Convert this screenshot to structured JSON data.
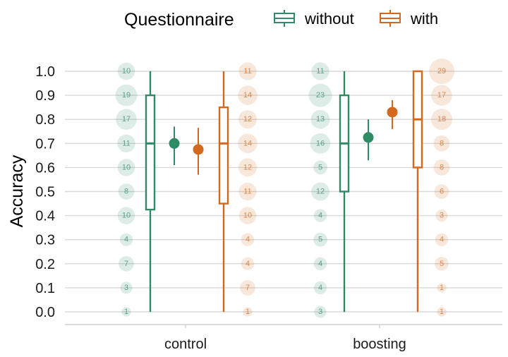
{
  "chart_data": {
    "type": "box+point+count",
    "ylabel": "Accuracy",
    "ylim": [
      0,
      1
    ],
    "y_ticks": [
      "0.0",
      "0.1",
      "0.2",
      "0.3",
      "0.4",
      "0.5",
      "0.6",
      "0.7",
      "0.8",
      "0.9",
      "1.0"
    ],
    "grid": true,
    "categories": [
      "control",
      "boosting"
    ],
    "legend": {
      "title": "Questionnaire",
      "position": "top",
      "entries": [
        {
          "key": "without",
          "label": "without",
          "color": "#2E8B66"
        },
        {
          "key": "with",
          "label": "with",
          "color": "#D2691E"
        }
      ]
    },
    "series": [
      {
        "name": "without",
        "color": "#2E8B66",
        "groups": [
          {
            "category": "control",
            "box": {
              "min": 0.0,
              "q1": 0.425,
              "median": 0.7,
              "q3": 0.9,
              "max": 1.0
            },
            "mean": 0.7,
            "ci": [
              0.61,
              0.77
            ],
            "counts": [
              {
                "y": 1.0,
                "n": "10"
              },
              {
                "y": 0.9,
                "n": "19"
              },
              {
                "y": 0.8,
                "n": "17"
              },
              {
                "y": 0.7,
                "n": "11"
              },
              {
                "y": 0.6,
                "n": "10"
              },
              {
                "y": 0.5,
                "n": "8"
              },
              {
                "y": 0.4,
                "n": "10"
              },
              {
                "y": 0.3,
                "n": "4"
              },
              {
                "y": 0.2,
                "n": "7"
              },
              {
                "y": 0.1,
                "n": "3"
              },
              {
                "y": 0.0,
                "n": "1"
              }
            ]
          },
          {
            "category": "boosting",
            "box": {
              "min": 0.0,
              "q1": 0.5,
              "median": 0.7,
              "q3": 0.9,
              "max": 1.0
            },
            "mean": 0.725,
            "ci": [
              0.63,
              0.8
            ],
            "counts": [
              {
                "y": 1.0,
                "n": "11"
              },
              {
                "y": 0.9,
                "n": "23"
              },
              {
                "y": 0.8,
                "n": "13"
              },
              {
                "y": 0.7,
                "n": "16"
              },
              {
                "y": 0.6,
                "n": "5"
              },
              {
                "y": 0.5,
                "n": "12"
              },
              {
                "y": 0.4,
                "n": "4"
              },
              {
                "y": 0.3,
                "n": "5"
              },
              {
                "y": 0.2,
                "n": "4"
              },
              {
                "y": 0.1,
                "n": "4"
              },
              {
                "y": 0.0,
                "n": "3"
              }
            ]
          }
        ]
      },
      {
        "name": "with",
        "color": "#D2691E",
        "groups": [
          {
            "category": "control",
            "box": {
              "min": 0.0,
              "q1": 0.45,
              "median": 0.7,
              "q3": 0.85,
              "max": 1.0
            },
            "mean": 0.675,
            "ci": [
              0.57,
              0.765
            ],
            "counts": [
              {
                "y": 1.0,
                "n": "11"
              },
              {
                "y": 0.9,
                "n": "14"
              },
              {
                "y": 0.8,
                "n": "12"
              },
              {
                "y": 0.7,
                "n": "14"
              },
              {
                "y": 0.6,
                "n": "12"
              },
              {
                "y": 0.5,
                "n": "11"
              },
              {
                "y": 0.4,
                "n": "10"
              },
              {
                "y": 0.3,
                "n": "4"
              },
              {
                "y": 0.2,
                "n": "4"
              },
              {
                "y": 0.1,
                "n": "7"
              },
              {
                "y": 0.0,
                "n": "1"
              }
            ]
          },
          {
            "category": "boosting",
            "box": {
              "min": 0.0,
              "q1": 0.6,
              "median": 0.8,
              "q3": 1.0,
              "max": 1.0
            },
            "mean": 0.83,
            "ci": [
              0.76,
              0.88
            ],
            "counts": [
              {
                "y": 1.0,
                "n": "29"
              },
              {
                "y": 0.9,
                "n": "17"
              },
              {
                "y": 0.8,
                "n": "18"
              },
              {
                "y": 0.7,
                "n": "8"
              },
              {
                "y": 0.6,
                "n": "8"
              },
              {
                "y": 0.5,
                "n": "6"
              },
              {
                "y": 0.4,
                "n": "3"
              },
              {
                "y": 0.3,
                "n": "4"
              },
              {
                "y": 0.2,
                "n": "5"
              },
              {
                "y": 0.1,
                "n": "1"
              },
              {
                "y": 0.0,
                "n": "1"
              }
            ]
          }
        ]
      }
    ]
  }
}
